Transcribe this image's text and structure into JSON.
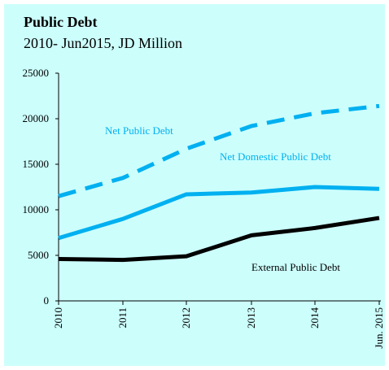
{
  "chart_data": {
    "type": "line",
    "title": "Public Debt",
    "subtitle": "2010- Jun2015, JD Million",
    "categories": [
      "2010",
      "2011",
      "2012",
      "2013",
      "2014",
      "Jun. 2015"
    ],
    "ylim": [
      0,
      25000
    ],
    "yticks": [
      0,
      5000,
      10000,
      15000,
      20000,
      25000
    ],
    "grid": false,
    "series": [
      {
        "name": "Net Public Debt",
        "values": [
          11500,
          13500,
          16700,
          19200,
          20600,
          21400
        ],
        "color": "#00b0f0",
        "style": "dashed"
      },
      {
        "name": "Net Domestic Public Debt",
        "values": [
          6900,
          9000,
          11700,
          11900,
          12500,
          12300
        ],
        "color": "#00b0f0",
        "style": "solid"
      },
      {
        "name": "External Public Debt",
        "values": [
          4600,
          4500,
          4900,
          7200,
          8000,
          9100
        ],
        "color": "#000000",
        "style": "solid"
      }
    ]
  }
}
